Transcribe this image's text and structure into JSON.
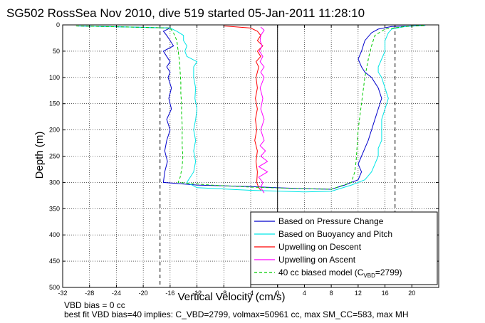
{
  "chart_data": {
    "type": "line",
    "title": "SG502 RossSea Nov 2010, dive 519 started 05-Jan-2011 11:28:10",
    "xlabel": "Vertical Velocity (cm/s)",
    "ylabel": "Depth (m)",
    "xlim": [
      -32,
      24
    ],
    "ylim": [
      500,
      0
    ],
    "y_reversed": true,
    "grid": true,
    "legend_position": "bottom-right",
    "x_ticks": [
      -32,
      -28,
      -24,
      -20,
      -16,
      -12,
      -8,
      -4,
      0,
      4,
      8,
      12,
      16,
      20
    ],
    "y_ticks": [
      0,
      50,
      100,
      150,
      200,
      250,
      300,
      350,
      400,
      450,
      500
    ],
    "reference_lines": [
      {
        "style": "dashed",
        "color": "#000000",
        "x": -17.5
      },
      {
        "style": "dashed",
        "color": "#000000",
        "x": 17.5
      },
      {
        "style": "solid",
        "color": "#000000",
        "x": 0
      }
    ],
    "legend": [
      {
        "label": "Based on Pressure Change",
        "color": "#0000cc",
        "dash": false
      },
      {
        "label": "Based on Buoyancy and Pitch",
        "color": "#00e6e6",
        "dash": false
      },
      {
        "label": "Upwelling on Descent",
        "color": "#ff0000",
        "dash": false
      },
      {
        "label": "Upwelling on Ascent",
        "color": "#ff00ff",
        "dash": false
      },
      {
        "label_main": "40 cc biased model (C",
        "label_sub": "VBD",
        "label_end": "=2799)",
        "color": "#00cc00",
        "dash": true
      }
    ],
    "series": [
      {
        "color": "#0000cc",
        "dash": false,
        "points": [
          [
            -30,
            2
          ],
          [
            -22,
            4
          ],
          [
            -16,
            6
          ],
          [
            -17,
            12
          ],
          [
            -16.5,
            20
          ],
          [
            -16,
            30
          ],
          [
            -15.5,
            40
          ],
          [
            -17,
            50
          ],
          [
            -16.5,
            60
          ],
          [
            -16,
            70
          ],
          [
            -16.5,
            80
          ],
          [
            -16,
            90
          ],
          [
            -16.3,
            100
          ],
          [
            -15.8,
            120
          ],
          [
            -16.2,
            140
          ],
          [
            -15.8,
            160
          ],
          [
            -16.5,
            180
          ],
          [
            -16.0,
            200
          ],
          [
            -16.5,
            220
          ],
          [
            -16.8,
            240
          ],
          [
            -16.4,
            260
          ],
          [
            -16.8,
            280
          ],
          [
            -17.0,
            300
          ],
          [
            -12,
            305
          ],
          [
            -4,
            308
          ],
          [
            4,
            312
          ],
          [
            8,
            313
          ],
          [
            10,
            305
          ],
          [
            12,
            295
          ],
          [
            12.5,
            280
          ],
          [
            12,
            265
          ],
          [
            12.5,
            250
          ],
          [
            13,
            235
          ],
          [
            13.5,
            220
          ],
          [
            14,
            200
          ],
          [
            14.5,
            180
          ],
          [
            15,
            160
          ],
          [
            15.5,
            140
          ],
          [
            15,
            120
          ],
          [
            14,
            100
          ],
          [
            13,
            90
          ],
          [
            12.5,
            80
          ],
          [
            12,
            65
          ],
          [
            12.5,
            50
          ],
          [
            13,
            30
          ],
          [
            14,
            15
          ],
          [
            15,
            8
          ],
          [
            17,
            3
          ],
          [
            22,
            1
          ]
        ]
      },
      {
        "color": "#00e6e6",
        "dash": false,
        "points": [
          [
            -30,
            2
          ],
          [
            -22,
            4
          ],
          [
            -16,
            6
          ],
          [
            -15,
            12
          ],
          [
            -14,
            20
          ],
          [
            -14,
            30
          ],
          [
            -13.5,
            40
          ],
          [
            -13.8,
            50
          ],
          [
            -13.5,
            60
          ],
          [
            -12,
            70
          ],
          [
            -12.5,
            80
          ],
          [
            -12.5,
            90
          ],
          [
            -12.5,
            100
          ],
          [
            -12.2,
            120
          ],
          [
            -12.3,
            140
          ],
          [
            -12.0,
            160
          ],
          [
            -12.2,
            180
          ],
          [
            -12.5,
            200
          ],
          [
            -12.2,
            220
          ],
          [
            -12.5,
            240
          ],
          [
            -12.2,
            260
          ],
          [
            -12.5,
            280
          ],
          [
            -13.5,
            300
          ],
          [
            -12,
            310
          ],
          [
            -4,
            315
          ],
          [
            4,
            318
          ],
          [
            8,
            317
          ],
          [
            11,
            305
          ],
          [
            13,
            295
          ],
          [
            14,
            280
          ],
          [
            14.5,
            265
          ],
          [
            15,
            250
          ],
          [
            15,
            235
          ],
          [
            15.5,
            220
          ],
          [
            15.5,
            200
          ],
          [
            15.5,
            180
          ],
          [
            16,
            160
          ],
          [
            16.5,
            140
          ],
          [
            16,
            120
          ],
          [
            15.5,
            100
          ],
          [
            15,
            90
          ],
          [
            15,
            80
          ],
          [
            15.5,
            65
          ],
          [
            16,
            50
          ],
          [
            16,
            30
          ],
          [
            16.5,
            15
          ],
          [
            17,
            8
          ],
          [
            19,
            3
          ],
          [
            22,
            1
          ]
        ]
      },
      {
        "color": "#ff0000",
        "dash": false,
        "points": [
          [
            -8,
            2
          ],
          [
            -4,
            6
          ],
          [
            -3,
            12
          ],
          [
            -2.5,
            20
          ],
          [
            -3,
            30
          ],
          [
            -2.2,
            40
          ],
          [
            -3,
            50
          ],
          [
            -2.5,
            60
          ],
          [
            -3.2,
            70
          ],
          [
            -2.8,
            80
          ],
          [
            -3,
            90
          ],
          [
            -3.2,
            100
          ],
          [
            -3.0,
            120
          ],
          [
            -3.3,
            140
          ],
          [
            -3.0,
            160
          ],
          [
            -3.3,
            180
          ],
          [
            -3.1,
            200
          ],
          [
            -3.4,
            220
          ],
          [
            -3.0,
            240
          ],
          [
            -3.2,
            260
          ],
          [
            -3.0,
            280
          ],
          [
            -3.1,
            300
          ],
          [
            -2.8,
            310
          ],
          [
            -2.5,
            315
          ]
        ]
      },
      {
        "color": "#ff00ff",
        "dash": false,
        "points": [
          [
            -2,
            320
          ],
          [
            -2.5,
            310
          ],
          [
            -2.2,
            300
          ],
          [
            -2.8,
            290
          ],
          [
            -1.5,
            280
          ],
          [
            -2.8,
            270
          ],
          [
            -1.5,
            260
          ],
          [
            -2.5,
            250
          ],
          [
            -1.8,
            240
          ],
          [
            -2.6,
            230
          ],
          [
            -2,
            220
          ],
          [
            -2.5,
            200
          ],
          [
            -2.0,
            180
          ],
          [
            -2.5,
            160
          ],
          [
            -2.2,
            140
          ],
          [
            -2.6,
            120
          ],
          [
            -2.0,
            100
          ],
          [
            -2.5,
            90
          ],
          [
            -2.0,
            80
          ],
          [
            -2.6,
            70
          ],
          [
            -2.2,
            60
          ],
          [
            -2.7,
            50
          ],
          [
            -2.3,
            40
          ],
          [
            -2.6,
            30
          ],
          [
            -2.5,
            20
          ],
          [
            -2.0,
            10
          ],
          [
            -2.5,
            4
          ]
        ]
      },
      {
        "color": "#00cc00",
        "dash": true,
        "points": [
          [
            -30,
            2
          ],
          [
            -22,
            4
          ],
          [
            -16,
            6
          ],
          [
            -15.5,
            15
          ],
          [
            -15,
            30
          ],
          [
            -14.8,
            50
          ],
          [
            -14.6,
            70
          ],
          [
            -14.5,
            90
          ],
          [
            -14.4,
            110
          ],
          [
            -14.4,
            130
          ],
          [
            -14.3,
            150
          ],
          [
            -14.3,
            170
          ],
          [
            -14.2,
            190
          ],
          [
            -14.2,
            210
          ],
          [
            -14.2,
            230
          ],
          [
            -14.1,
            250
          ],
          [
            -14.2,
            270
          ],
          [
            -14.5,
            290
          ],
          [
            -14.8,
            300
          ],
          [
            -10,
            305
          ],
          [
            -4,
            309
          ],
          [
            4,
            312
          ],
          [
            8,
            313
          ],
          [
            11,
            300
          ],
          [
            11.5,
            280
          ],
          [
            11.7,
            260
          ],
          [
            11.8,
            240
          ],
          [
            11.9,
            220
          ],
          [
            12.0,
            200
          ],
          [
            12.2,
            180
          ],
          [
            12.4,
            160
          ],
          [
            12.6,
            140
          ],
          [
            12.8,
            120
          ],
          [
            13.0,
            100
          ],
          [
            13.3,
            80
          ],
          [
            13.6,
            60
          ],
          [
            14.0,
            40
          ],
          [
            14.5,
            20
          ],
          [
            16,
            8
          ],
          [
            19,
            3
          ],
          [
            22,
            1
          ]
        ]
      }
    ]
  },
  "notes": {
    "line1": "VBD bias = 0 cc",
    "line2": "best fit VBD bias=40 implies: C_VBD=2799, volmax=50961 cc, max SM_CC=583, max MH"
  }
}
